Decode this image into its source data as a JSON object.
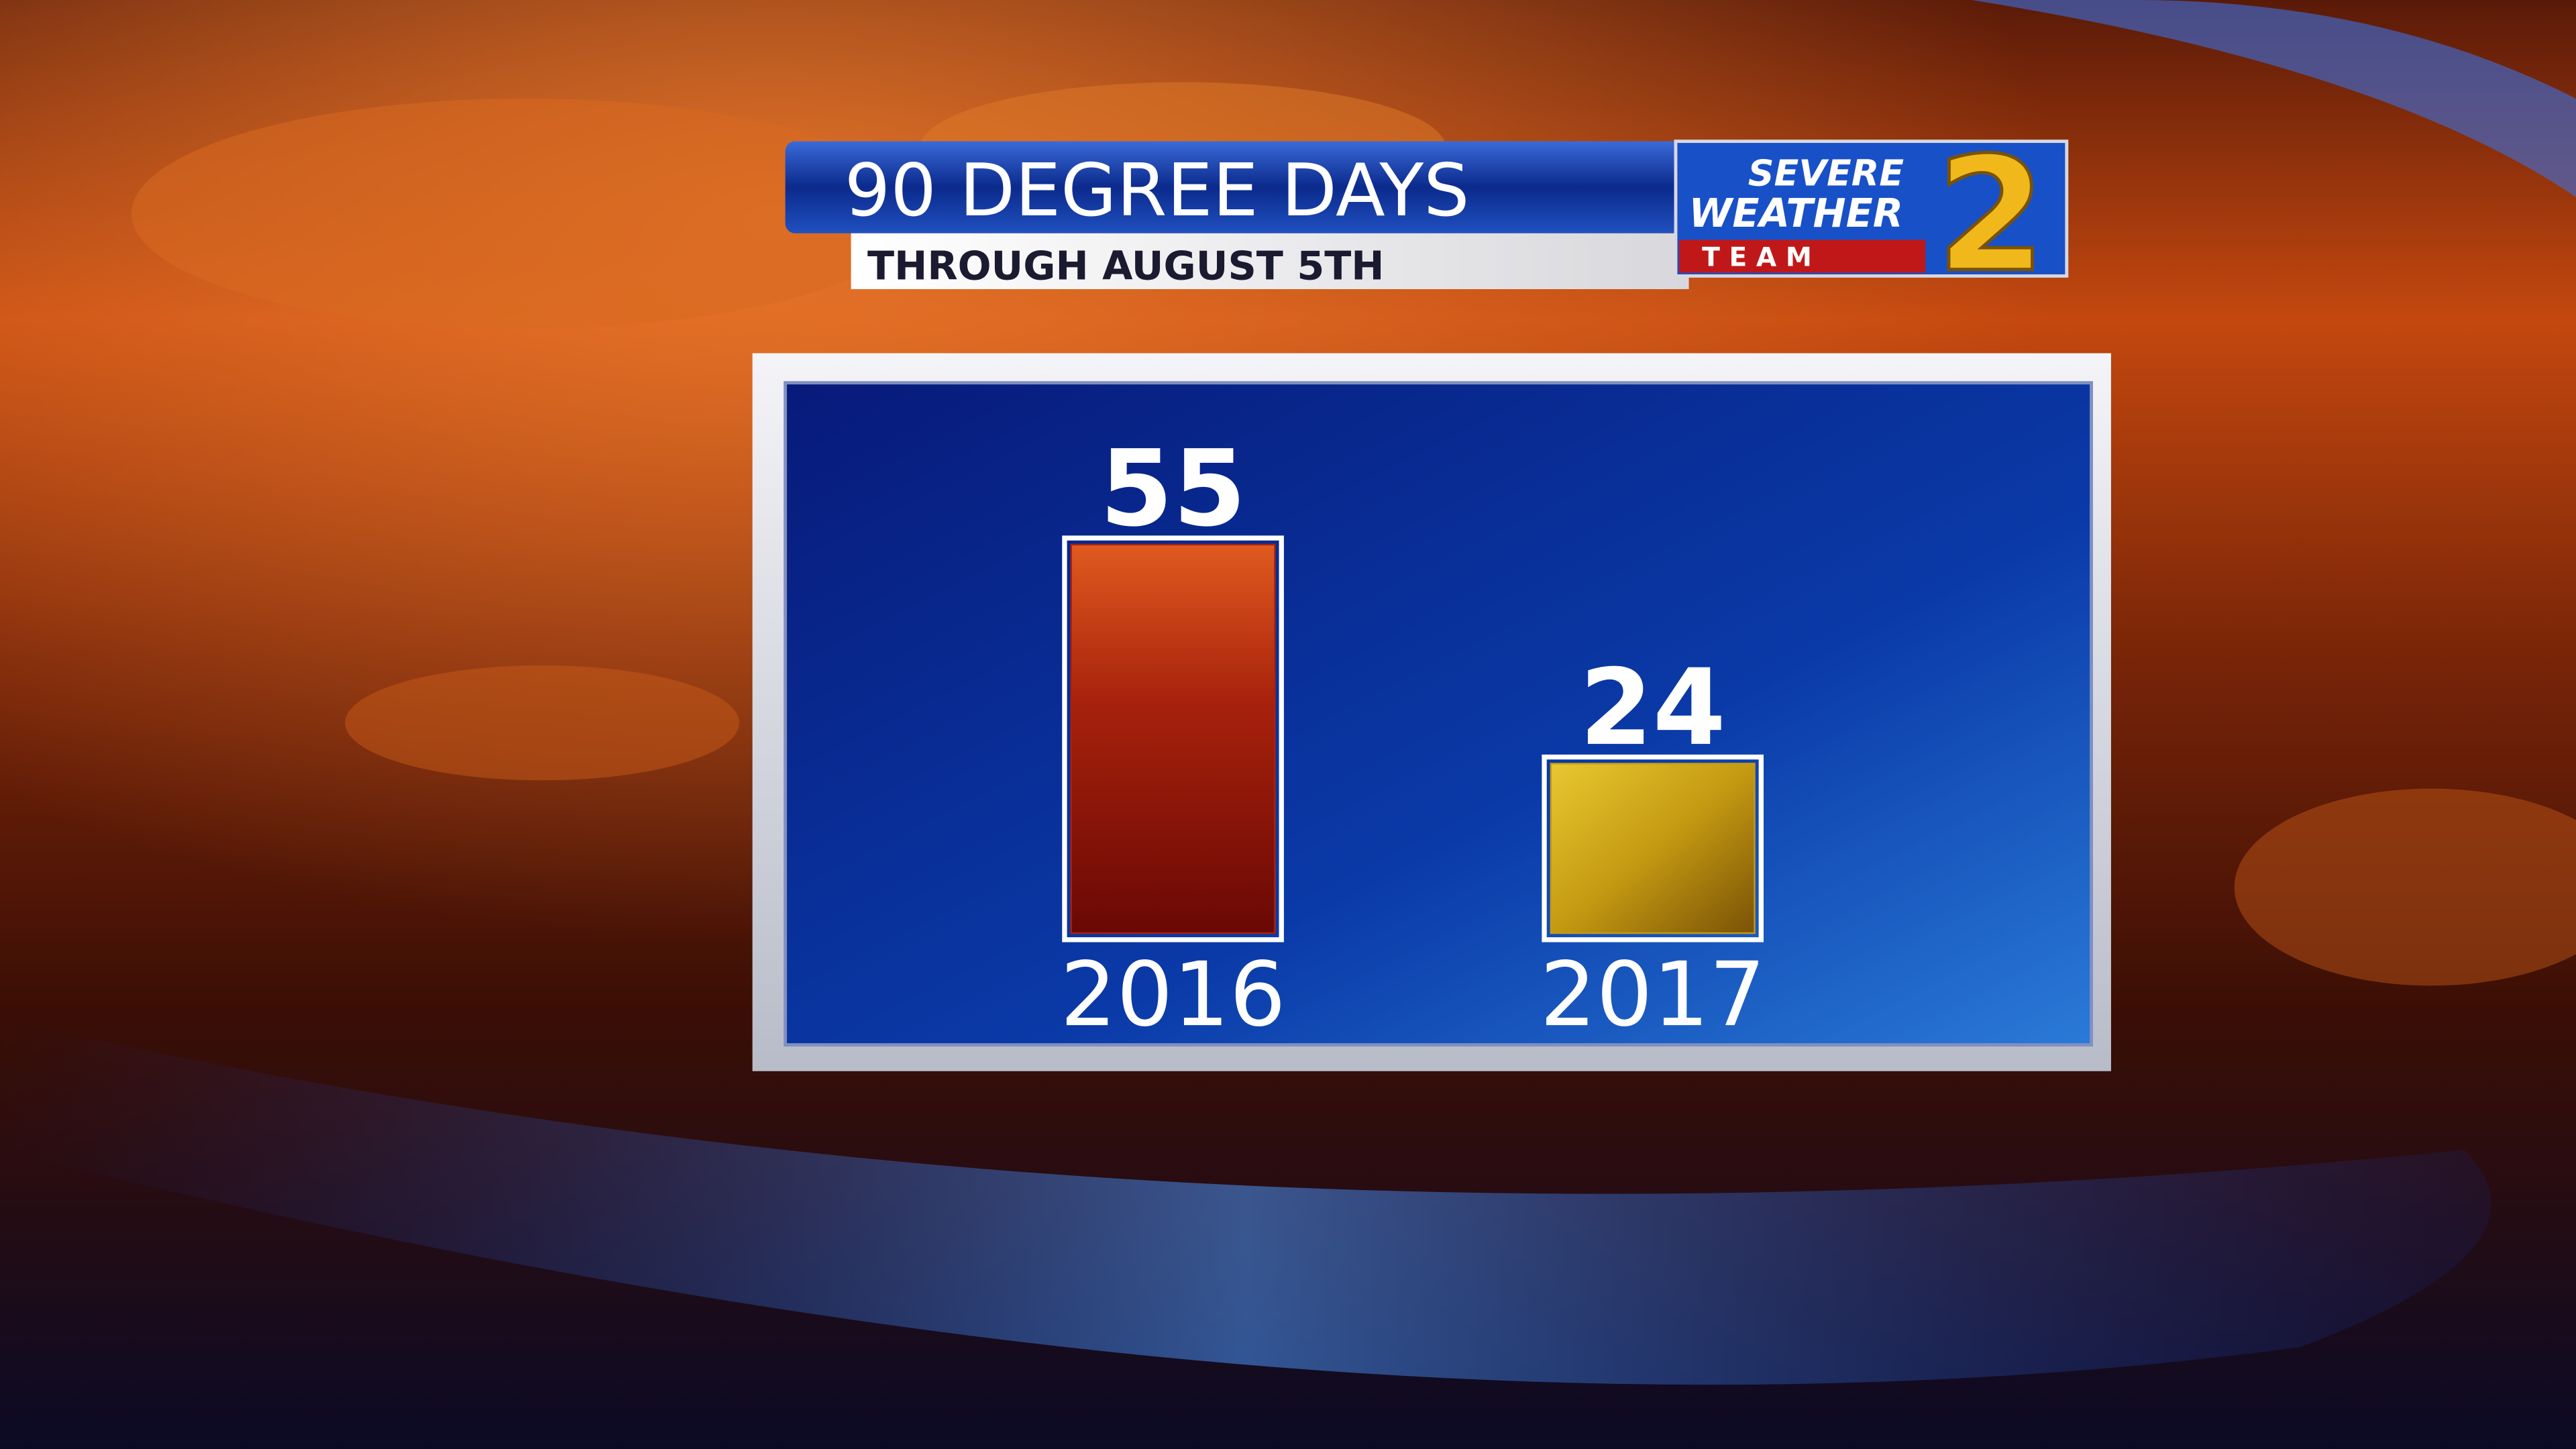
{
  "chart_data": {
    "type": "bar",
    "title": "90 DEGREE DAYS",
    "subtitle": "THROUGH AUGUST 5TH",
    "categories": [
      "2016",
      "2017"
    ],
    "values": [
      55,
      24
    ],
    "colors": [
      "#a8220c",
      "#c49a12"
    ]
  },
  "logo": {
    "line1": "SEVERE",
    "line2": "WEATHER",
    "line3": "T E A M",
    "number": "2"
  }
}
